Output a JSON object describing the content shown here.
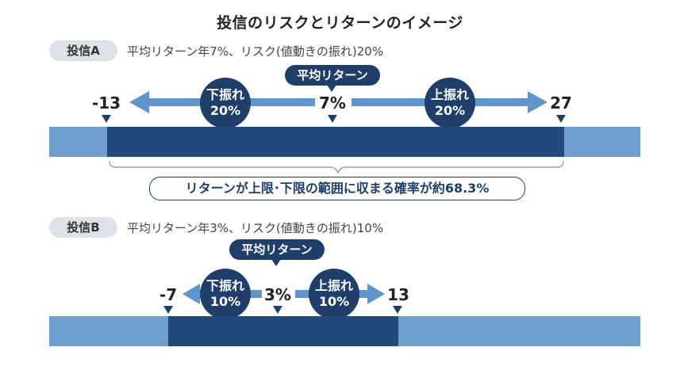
{
  "title": "投信のリスクとリターンのイメージ",
  "colors": {
    "dark_band": "#234a79",
    "light_band": "#6e9fcf",
    "arrow": "#5e95cc",
    "badge": "#1f3f6a",
    "tag_bg": "#dde2e8"
  },
  "fund_a": {
    "tag": "投信A",
    "description": "平均リターン年7%、リスク(値動きの振れ)20%",
    "average_label": "平均リターン",
    "average_value": "7%",
    "low_value": "-13",
    "high_value": "27",
    "down_label": "下振れ",
    "down_value": "20%",
    "up_label": "上振れ",
    "up_value": "20%",
    "probability_note": "リターンが上限･下限の範囲に収まる確率が約68.3%"
  },
  "fund_b": {
    "tag": "投信B",
    "description": "平均リターン年3%、リスク(値動きの振れ)10%",
    "average_label": "平均リターン",
    "average_value": "3%",
    "low_value": "-7",
    "high_value": "13",
    "down_label": "下振れ",
    "down_value": "10%",
    "up_label": "上振れ",
    "up_value": "10%"
  }
}
